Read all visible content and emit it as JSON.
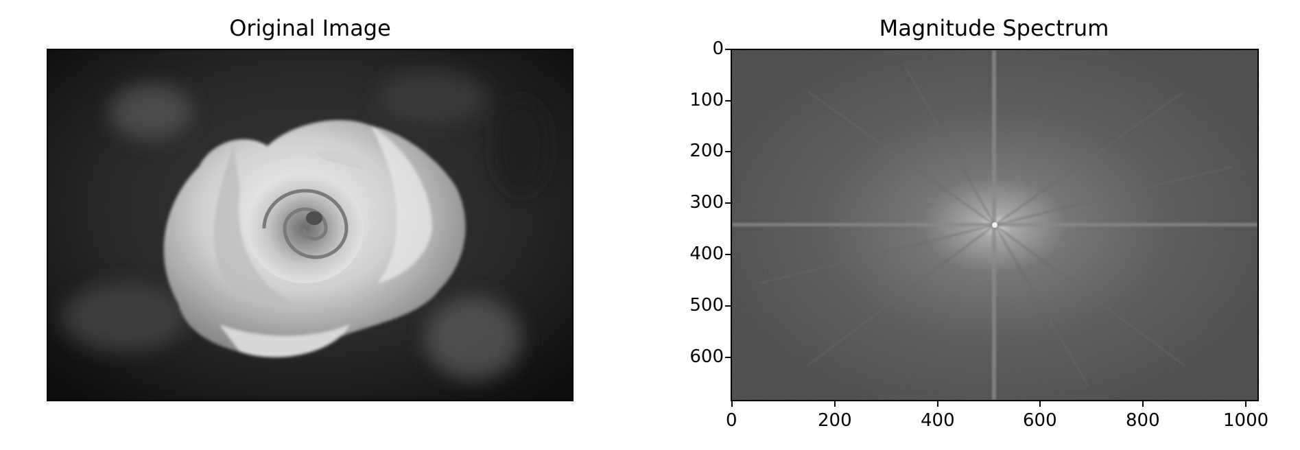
{
  "left_panel": {
    "title": "Original Image",
    "image_content": "rose"
  },
  "right_panel": {
    "title": "Magnitude Spectrum",
    "x_ticks": [
      "0",
      "200",
      "400",
      "600",
      "800",
      "1000"
    ],
    "y_ticks": [
      "0",
      "100",
      "200",
      "300",
      "400",
      "500",
      "600"
    ],
    "x_range": [
      0,
      1024
    ],
    "y_range": [
      0,
      683
    ]
  },
  "colors": {
    "background": "#ffffff",
    "axis": "#000000",
    "spectrum_base": "#4a4a4a",
    "spectrum_center": "#e0e0e0"
  }
}
